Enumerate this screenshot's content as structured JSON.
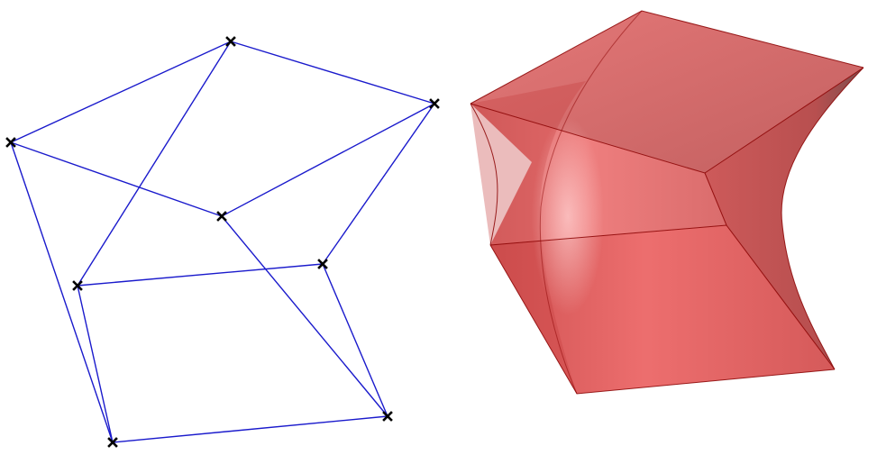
{
  "colors": {
    "background": "#ffffff",
    "wire_edge": "#1a1acc",
    "vertex_marker": "#000000",
    "solid_fill": "#d94545",
    "solid_edge": "#8a0000"
  },
  "wireframe": {
    "marker": "x-cross-icon",
    "vertex_count": 8,
    "edge_count": 12
  },
  "solid": {
    "shape": "warped-hexahedron",
    "translucent": true
  }
}
